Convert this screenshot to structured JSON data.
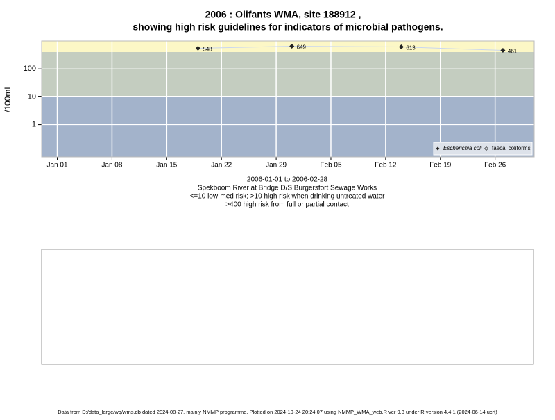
{
  "chart_data": {
    "type": "scatter",
    "title": "2006 : Olifants WMA, site 188912 ,",
    "title_line2": "showing high risk guidelines for indicators of microbial pathogens.",
    "y_label": "/100mL",
    "subtitle_lines": [
      "2006-01-01 to 2006-02-28",
      "Spekboom River at Bridge D/S Burgersfort Sewage Works",
      "<=10 low-med risk; >10 high risk when drinking untreated water",
      ">400 high risk from full or partial contact"
    ],
    "x": [
      "2006-01-19",
      "2006-01-31",
      "2006-02-14",
      "2006-02-27"
    ],
    "series": [
      {
        "name": "Escherichia coli",
        "color": "#222222",
        "values": [
          548,
          649,
          613,
          461
        ]
      },
      {
        "name": "faecal coliforms",
        "color": "#222222",
        "values": [
          null,
          null,
          null,
          null
        ]
      }
    ],
    "xlim": [
      "2005-12-30",
      "2006-03-03"
    ],
    "xticks": [
      {
        "value": "2006-01-01",
        "label": "Jan 01"
      },
      {
        "value": "2006-01-08",
        "label": "Jan 08"
      },
      {
        "value": "2006-01-15",
        "label": "Jan 15"
      },
      {
        "value": "2006-01-22",
        "label": "Jan 22"
      },
      {
        "value": "2006-01-29",
        "label": "Jan 29"
      },
      {
        "value": "2006-02-05",
        "label": "Feb 05"
      },
      {
        "value": "2006-02-12",
        "label": "Feb 12"
      },
      {
        "value": "2006-02-19",
        "label": "Feb 19"
      },
      {
        "value": "2006-02-26",
        "label": "Feb 26"
      }
    ],
    "ylim": [
      0.07,
      1000
    ],
    "yticks": [
      1,
      10,
      100
    ],
    "log_y": true,
    "grid": true,
    "legend": "bottom-right",
    "bands": [
      {
        "min": 0.07,
        "max": 10,
        "color": "#a3b3cb"
      },
      {
        "min": 10,
        "max": 400,
        "color": "#c4cdc0"
      },
      {
        "min": 400,
        "max": 1000,
        "color": "#fcf7c6"
      }
    ],
    "footer": "Data from D:/data_large/wq/wms.db dated 2024-08-27, mainly NMMP programme. Plotted on 2024-10-24 20:24:07 using NMMP_WMA_web.R ver 9.3 under R version 4.4.1 (2024-06-14 ucrt)"
  }
}
